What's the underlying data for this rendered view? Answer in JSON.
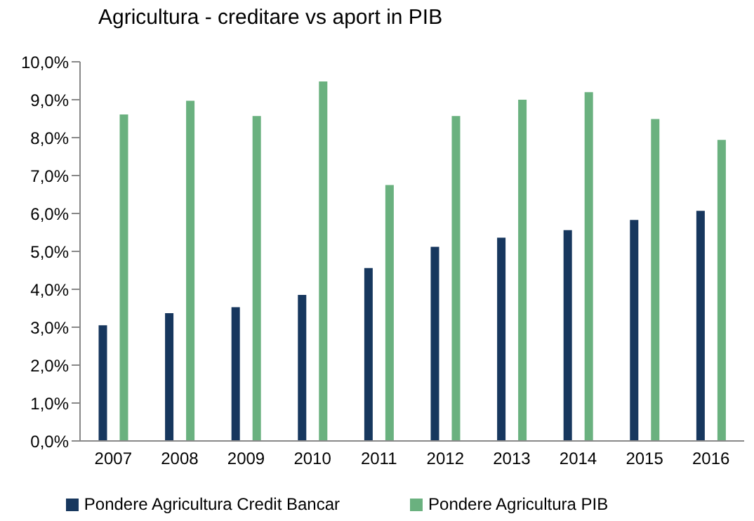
{
  "chart_data": {
    "type": "bar",
    "title": "Agricultura - creditare vs aport in PIB",
    "categories": [
      "2007",
      "2008",
      "2009",
      "2010",
      "2011",
      "2012",
      "2013",
      "2014",
      "2015",
      "2016"
    ],
    "series": [
      {
        "name": "Pondere Agricultura Credit Bancar",
        "color": "#17375e",
        "values": [
          3.05,
          3.37,
          3.53,
          3.85,
          4.56,
          5.12,
          5.36,
          5.56,
          5.83,
          6.07
        ]
      },
      {
        "name": "Pondere Agricultura PIB",
        "color": "#6ab17f",
        "values": [
          8.61,
          8.97,
          8.57,
          9.48,
          6.75,
          8.57,
          9.0,
          9.2,
          8.49,
          7.94
        ]
      }
    ],
    "ylim": [
      0,
      10
    ],
    "yticks": [
      {
        "value": 0,
        "label": "0,0%"
      },
      {
        "value": 1,
        "label": "1,0%"
      },
      {
        "value": 2,
        "label": "2,0%"
      },
      {
        "value": 3,
        "label": "3,0%"
      },
      {
        "value": 4,
        "label": "4,0%"
      },
      {
        "value": 5,
        "label": "5,0%"
      },
      {
        "value": 6,
        "label": "6,0%"
      },
      {
        "value": 7,
        "label": "7,0%"
      },
      {
        "value": 8,
        "label": "8,0%"
      },
      {
        "value": 9,
        "label": "9,0%"
      },
      {
        "value": 10,
        "label": "10,0%"
      }
    ],
    "grid": false,
    "legend": "bottom"
  }
}
